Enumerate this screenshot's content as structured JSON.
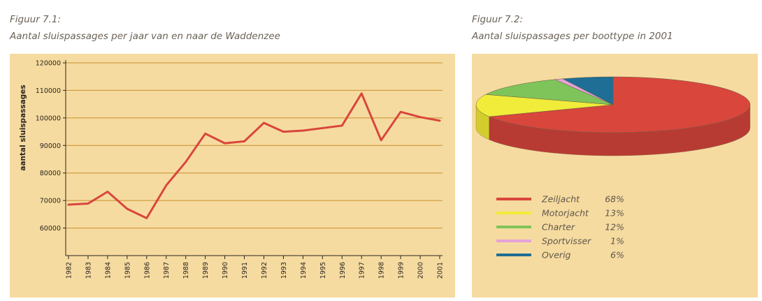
{
  "figure1": {
    "number": "Figuur 7.1:",
    "title": "Aantal sluispassages per jaar van en naar de Waddenzee"
  },
  "figure2": {
    "number": "Figuur 7.2:",
    "title": "Aantal sluispassages per boottype in 2001"
  },
  "colors": {
    "panel_background": "#f6dba0",
    "gridline": "#c8902e",
    "line": "#d8463c",
    "zeiljacht": "#d8463c",
    "motorjacht": "#f1ec3a",
    "charter": "#7fc45a",
    "sportvisser": "#e4a3d8",
    "overig": "#1f6e95"
  },
  "chart_data": [
    {
      "type": "line",
      "ylabel": "aantal sluispassages",
      "xlabel": "",
      "ylim": [
        50000,
        120000
      ],
      "yticks": [
        60000,
        70000,
        80000,
        90000,
        100000,
        110000,
        120000
      ],
      "ytick_labels": [
        "60000",
        "70000",
        "80000",
        "90000",
        "100000",
        "110000",
        "120000"
      ],
      "grid": true,
      "x": [
        "1982",
        "1983",
        "1984",
        "1985",
        "1986",
        "1987",
        "1988",
        "1989",
        "1990",
        "1991",
        "1992",
        "1993",
        "1994",
        "1995",
        "1996",
        "1997",
        "1998",
        "1999",
        "2000",
        "2001"
      ],
      "series": [
        {
          "values": [
            68500,
            68900,
            73200,
            67000,
            63600,
            75500,
            84000,
            94300,
            90800,
            91500,
            98200,
            95000,
            95400,
            96300,
            97200,
            108900,
            91900,
            102200,
            100300,
            99000
          ]
        }
      ]
    },
    {
      "type": "pie",
      "title": "",
      "categories": [
        "Zeiljacht",
        "Motorjacht",
        "Charter",
        "Sportvisser",
        "Overig"
      ],
      "values": [
        68,
        13,
        12,
        1,
        6
      ],
      "value_labels": [
        "68%",
        "13%",
        "12%",
        "1%",
        "6%"
      ],
      "legend_placement": "bottom-left"
    }
  ]
}
